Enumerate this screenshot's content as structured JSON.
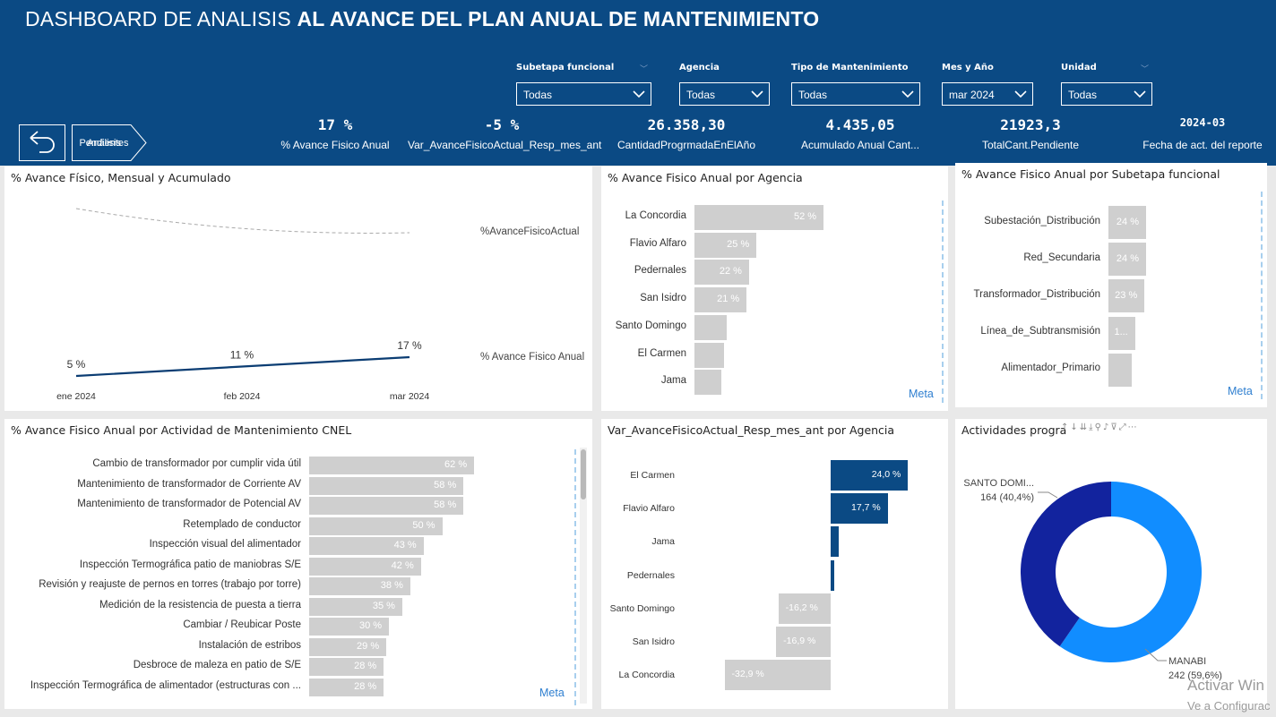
{
  "header": {
    "title_light": "DASHBOARD DE ANALISIS",
    "title_bold": "AL AVANCE DEL PLAN ANUAL DE MANTENIMIENTO",
    "background": "#0b4a84"
  },
  "slicers": [
    {
      "label": "Subetapa funcional",
      "value": "Todas"
    },
    {
      "label": "Agencia",
      "value": "Todas"
    },
    {
      "label": "Tipo de Mantenimiento",
      "value": "Todas"
    },
    {
      "label": "Mes y Año",
      "value": "mar 2024"
    },
    {
      "label": "Unidad",
      "value": "Todas"
    }
  ],
  "nav": {
    "back_icon": "back-arrow-icon",
    "pending_label_line1": "Análisis",
    "pending_label_line2": "Pendientes"
  },
  "kpis": [
    {
      "value": "17 %",
      "label": "% Avance Fisico Anual"
    },
    {
      "value": "-5 %",
      "label": "Var_AvanceFisicoActual_Resp_mes_ant"
    },
    {
      "value": "26.358,30",
      "label": "CantidadProgrmadaEnElAño"
    },
    {
      "value": "4.435,05",
      "label": "Acumulado Anual Cant..."
    },
    {
      "value": "21923,3",
      "label": "TotalCant.Pendiente"
    },
    {
      "value": "2024-03",
      "label": "Fecha de act. del reporte"
    }
  ],
  "panels": {
    "monthly": {
      "title": "% Avance Físico, Mensual y Acumulado",
      "chart_data": {
        "type": "line",
        "categories": [
          "ene 2024",
          "feb 2024",
          "mar 2024"
        ],
        "series": [
          {
            "name": "%AvanceFisicoActual",
            "values": [
              null,
              null,
              null
            ],
            "style": "dashed",
            "color": "#aaaaaa"
          },
          {
            "name": "% Avance Fisico Anual",
            "values": [
              5,
              11,
              17
            ],
            "labels": [
              "5 %",
              "11 %",
              "17 %"
            ],
            "color": "#0b3d73"
          }
        ]
      }
    },
    "agency": {
      "title": "% Avance Fisico Anual por Agencia",
      "meta_label": "Meta",
      "chart_data": {
        "type": "bar",
        "orientation": "horizontal",
        "categories": [
          "La Concordia",
          "Flavio Alfaro",
          "Pedernales",
          "San Isidro",
          "Santo Domingo",
          "El Carmen",
          "Jama"
        ],
        "values": [
          52,
          25,
          22,
          21,
          13,
          12,
          11
        ],
        "labels": [
          "52 %",
          "25 %",
          "22 %",
          "21 %",
          "",
          "",
          ""
        ],
        "xlim": [
          0,
          100
        ]
      }
    },
    "subetapa": {
      "title": "% Avance Fisico Anual por Subetapa funcional",
      "meta_label": "Meta",
      "chart_data": {
        "type": "bar",
        "orientation": "horizontal",
        "categories": [
          "Subestación_Distribución",
          "Red_Secundaria",
          "Transformador_Distribución",
          "Línea_de_Subtransmisión",
          "Alimentador_Primario"
        ],
        "values": [
          24,
          24,
          23,
          17,
          15
        ],
        "labels": [
          "24 %",
          "24 %",
          "23 %",
          "1...",
          ""
        ],
        "xlim": [
          0,
          100
        ]
      }
    },
    "activity": {
      "title": "% Avance Fisico Anual por Actividad de Mantenimiento CNEL",
      "meta_label": "Meta",
      "chart_data": {
        "type": "bar",
        "orientation": "horizontal",
        "categories": [
          "Cambio de transformador por cumplir vida útil",
          "Mantenimiento de transformador de Corriente AV",
          "Mantenimiento de transformador de Potencial AV",
          "Retemplado de conductor",
          "Inspección visual del alimentador",
          "Inspección Termográfica patio de maniobras S/E",
          "Revisión y reajuste de pernos en torres (trabajo por torre)",
          "Medición de la resistencia de puesta a tierra",
          "Cambiar / Reubicar Poste",
          "Instalación de estribos",
          "Desbroce de maleza en patio de S/E",
          "Inspección Termográfica de alimentador (estructuras con ..."
        ],
        "values": [
          62,
          58,
          58,
          50,
          43,
          42,
          38,
          35,
          30,
          29,
          28,
          28
        ],
        "labels": [
          "62 %",
          "58 %",
          "58 %",
          "50 %",
          "43 %",
          "42 %",
          "38 %",
          "35 %",
          "30 %",
          "29 %",
          "28 %",
          "28 %"
        ],
        "xlim": [
          0,
          100
        ]
      }
    },
    "variation": {
      "title": "Var_AvanceFisicoActual_Resp_mes_ant por Agencia",
      "chart_data": {
        "type": "bar",
        "orientation": "horizontal",
        "categories": [
          "El Carmen",
          "Flavio Alfaro",
          "Jama",
          "Pedernales",
          "Santo Domingo",
          "San Isidro",
          "La Concordia"
        ],
        "values": [
          24.0,
          17.7,
          2.5,
          1.2,
          -16.2,
          -16.9,
          -32.9
        ],
        "labels": [
          "24,0 %",
          "17,7 %",
          "",
          "",
          "-16,2 %",
          "-16,9 %",
          "-32,9 %"
        ],
        "positive_color": "#0b4a84",
        "negative_color": "#cfcfcf",
        "xlim": [
          -35,
          30
        ]
      }
    },
    "donut": {
      "title": "Actividades progra",
      "chart_data": {
        "type": "pie",
        "donut": true,
        "categories": [
          "MANABI",
          "SANTO DOMI..."
        ],
        "values": [
          242,
          164
        ],
        "labels": [
          "242 (59,6%)",
          "164 (40,4%)"
        ],
        "colors": [
          "#118dff",
          "#12239e"
        ]
      }
    }
  },
  "watermark": {
    "line1": "Activar Win",
    "line2": "Ve a Configurac"
  }
}
